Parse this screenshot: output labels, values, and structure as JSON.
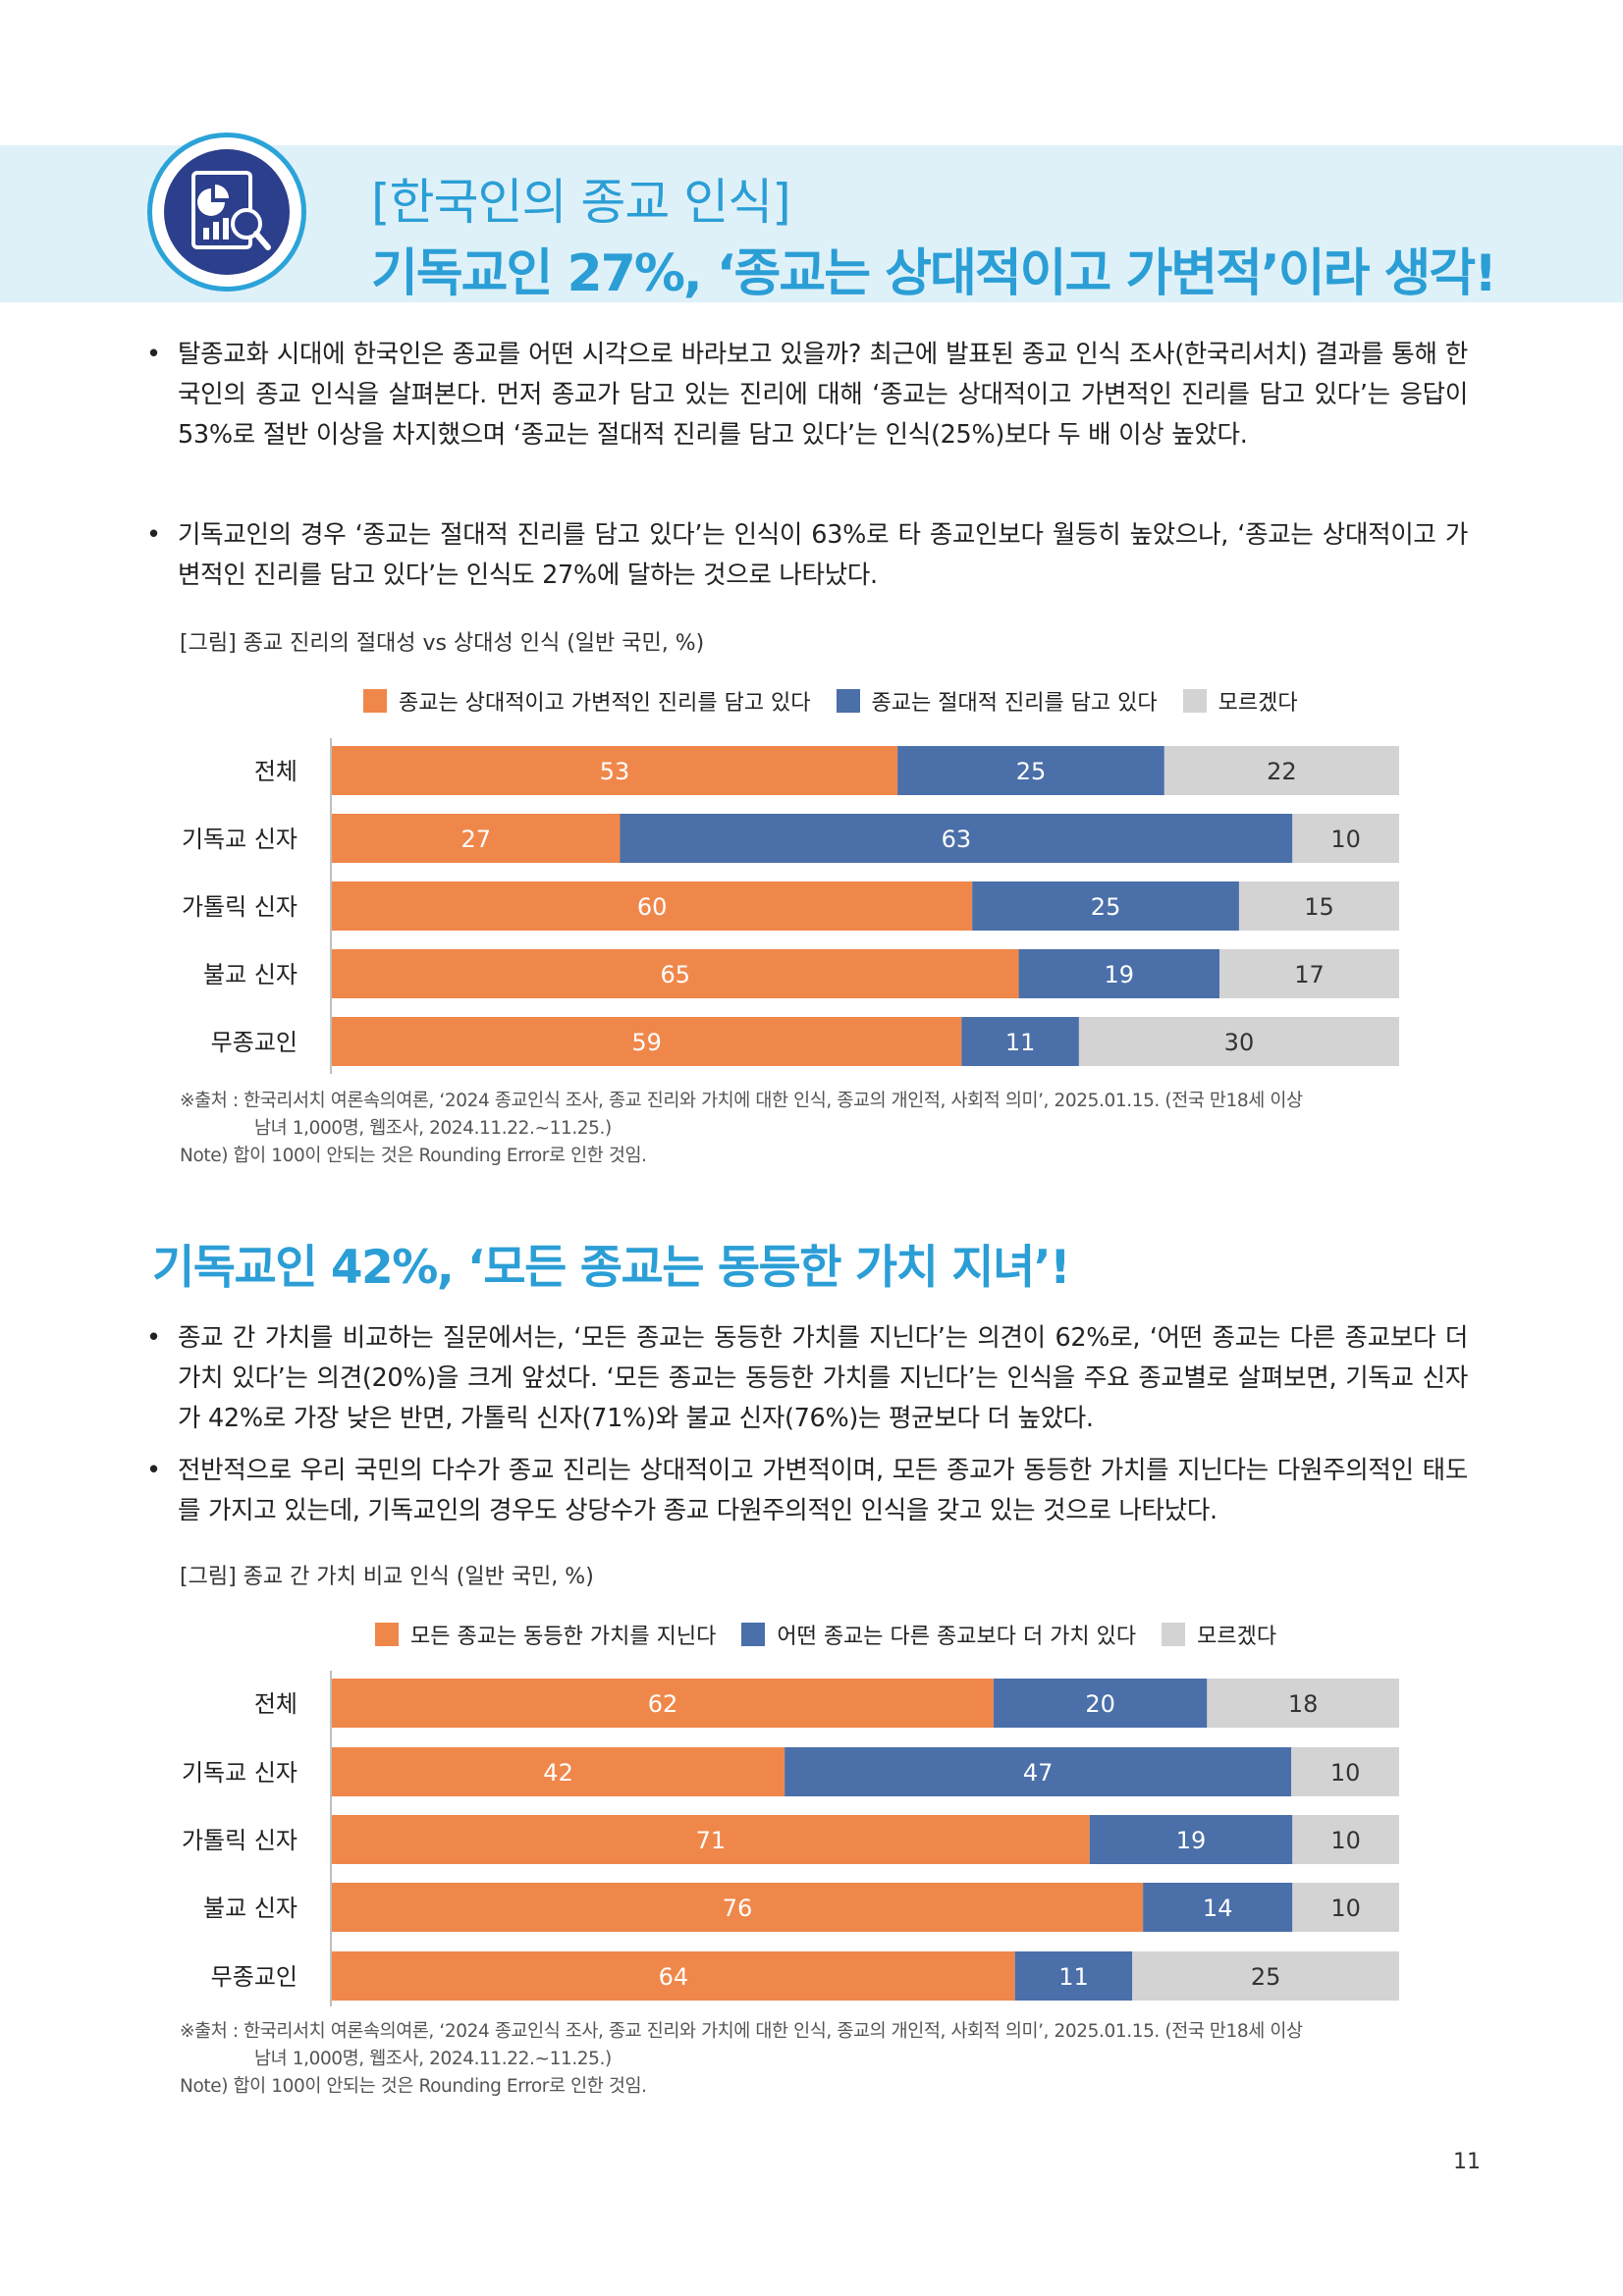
{
  "header": {
    "title_line1": "[한국인의 종교 인식]",
    "title_line2": "기독교인 27%, ‘종교는 상대적이고 가변적’이라 생각!"
  },
  "section1": {
    "bullets": [
      "탈종교화 시대에 한국인은 종교를 어떤 시각으로 바라보고 있을까? 최근에 발표된 종교 인식 조사(한국리서치) 결과를 통해 한국인의 종교 인식을 살펴본다. 먼저 종교가 담고 있는 진리에 대해 ‘종교는 상대적이고 가변적인 진리를 담고 있다’는 응답이 53%로 절반 이상을 차지했으며 ‘종교는 절대적 진리를 담고 있다’는 인식(25%)보다 두 배 이상 높았다.",
      "기독교인의 경우 ‘종교는 절대적 진리를 담고 있다’는 인식이 63%로 타 종교인보다 월등히 높았으나, ‘종교는 상대적이고 가변적인 진리를 담고 있다’는 인식도 27%에 달하는 것으로 나타났다."
    ],
    "figure_caption": "[그림] 종교 진리의 절대성 vs 상대성 인식 (일반 국민, %)",
    "source_line1": "※출처 : 한국리서치 여론속의여론, ‘2024 종교인식 조사, 종교 진리와 가치에 대한 인식, 종교의 개인적, 사회적 의미’, 2025.01.15. (전국 만18세 이상",
    "source_line2": "남녀 1,000명, 웹조사, 2024.11.22.~11.25.)",
    "note": "Note) 합이 100이 안되는 것은 Rounding Error로 인한 것임."
  },
  "section2": {
    "title": "기독교인 42%, ‘모든 종교는 동등한 가치 지녀’!",
    "bullets": [
      "종교 간 가치를 비교하는 질문에서는, ‘모든 종교는 동등한 가치를 지닌다’는 의견이 62%로, ‘어떤 종교는 다른 종교보다 더 가치 있다’는 의견(20%)을 크게 앞섰다. ‘모든 종교는 동등한 가치를 지닌다’는 인식을 주요 종교별로 살펴보면, 기독교 신자가 42%로 가장 낮은 반면, 가톨릭 신자(71%)와 불교 신자(76%)는 평균보다 더 높았다.",
      "전반적으로 우리 국민의 다수가 종교 진리는 상대적이고 가변적이며, 모든 종교가 동등한 가치를 지닌다는 다원주의적인 태도를 가지고 있는데, 기독교인의 경우도 상당수가 종교 다원주의적인 인식을 갖고 있는 것으로 나타났다."
    ],
    "figure_caption": "[그림] 종교 간 가치 비교 인식 (일반 국민, %)",
    "source_line1": "※출처 : 한국리서치 여론속의여론, ‘2024 종교인식 조사, 종교 진리와 가치에 대한 인식, 종교의 개인적, 사회적 의미’, 2025.01.15. (전국 만18세 이상",
    "source_line2": "남녀 1,000명, 웹조사, 2024.11.22.~11.25.)",
    "note": "Note) 합이 100이 안되는 것은 Rounding Error로 인한 것임."
  },
  "colors": {
    "orange": "#f0874a",
    "blue": "#4a6fa9",
    "gray": "#d3d3d3",
    "accent": "#2b9ed6"
  },
  "chart_data": [
    {
      "type": "bar",
      "orientation": "horizontal-stacked",
      "categories": [
        "전체",
        "기독교 신자",
        "가톨릭 신자",
        "불교 신자",
        "무종교인"
      ],
      "series": [
        {
          "name": "종교는 상대적이고 가변적인 진리를 담고 있다",
          "values": [
            53,
            27,
            60,
            65,
            59
          ]
        },
        {
          "name": "종교는 절대적 진리를 담고 있다",
          "values": [
            25,
            63,
            25,
            19,
            11
          ]
        },
        {
          "name": "모르겠다",
          "values": [
            22,
            10,
            15,
            17,
            30
          ]
        }
      ],
      "xlim": [
        0,
        100
      ],
      "legend": "top"
    },
    {
      "type": "bar",
      "orientation": "horizontal-stacked",
      "categories": [
        "전체",
        "기독교 신자",
        "가톨릭 신자",
        "불교 신자",
        "무종교인"
      ],
      "series": [
        {
          "name": "모든 종교는 동등한 가치를 지닌다",
          "values": [
            62,
            42,
            71,
            76,
            64
          ]
        },
        {
          "name": "어떤 종교는 다른 종교보다 더 가치 있다",
          "values": [
            20,
            47,
            19,
            14,
            11
          ]
        },
        {
          "name": "모르겠다",
          "values": [
            18,
            10,
            10,
            10,
            25
          ]
        }
      ],
      "xlim": [
        0,
        100
      ],
      "legend": "top"
    }
  ],
  "page_number": "11"
}
